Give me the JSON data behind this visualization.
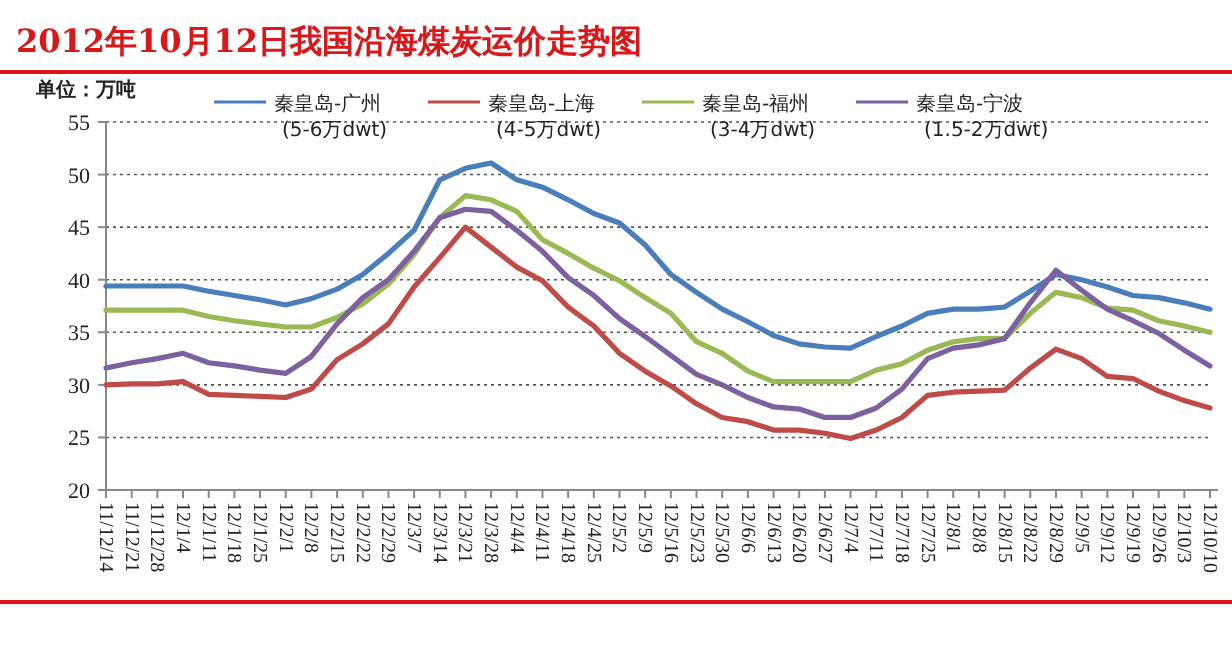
{
  "chart_data": {
    "type": "line",
    "title": "2012年10月12日我国沿海煤炭运价走势图",
    "ylabel": "单位：万吨",
    "legend": "top",
    "grid": "y",
    "categories": [
      "11/12/14",
      "11/12/21",
      "11/12/28",
      "12/1/4",
      "12/1/11",
      "12/1/18",
      "12/1/25",
      "12/2/1",
      "12/2/8",
      "12/2/15",
      "12/2/22",
      "12/2/29",
      "12/3/7",
      "12/3/14",
      "12/3/21",
      "12/3/28",
      "12/4/4",
      "12/4/11",
      "12/4/18",
      "12/4/25",
      "12/5/2",
      "12/5/9",
      "12/5/16",
      "12/5/23",
      "12/5/30",
      "12/6/6",
      "12/6/13",
      "12/6/20",
      "12/6/27",
      "12/7/4",
      "12/7/11",
      "12/7/18",
      "12/7/25",
      "12/8/1",
      "12/8/8",
      "12/8/15",
      "12/8/22",
      "12/8/29",
      "12/9/5",
      "12/9/12",
      "12/9/19",
      "12/9/26",
      "12/10/3",
      "12/10/10"
    ],
    "ylim": [
      20,
      55
    ],
    "yticks": [
      20,
      25,
      30,
      35,
      40,
      45,
      50,
      55
    ],
    "series": [
      {
        "name": "秦皇岛-广州\n(5-6万dwt)",
        "color": "#4a7ebb",
        "values": [
          39.4,
          39.4,
          39.4,
          39.4,
          38.9,
          38.5,
          38.1,
          37.6,
          38.2,
          39.1,
          40.5,
          42.5,
          44.7,
          49.5,
          50.6,
          51.1,
          49.5,
          48.8,
          47.6,
          46.3,
          45.4,
          43.3,
          40.5,
          38.8,
          37.2,
          36,
          34.7,
          33.9,
          33.6,
          33.5,
          34.6,
          35.6,
          36.8,
          37.2,
          37.2,
          37.4,
          38.9,
          40.5,
          40,
          39.3,
          38.5,
          38.3,
          37.8,
          37.2
        ]
      },
      {
        "name": "秦皇岛-上海\n(4-5万dwt)",
        "color": "#be4b48",
        "values": [
          30,
          30.1,
          30.1,
          30.3,
          29.1,
          29,
          28.9,
          28.8,
          29.6,
          32.4,
          33.9,
          35.8,
          39.3,
          42.1,
          45,
          43.1,
          41.2,
          39.9,
          37.4,
          35.6,
          33,
          31.3,
          29.9,
          28.2,
          26.9,
          26.5,
          25.7,
          25.7,
          25.4,
          24.9,
          25.7,
          26.9,
          29,
          29.3,
          29.4,
          29.5,
          31.6,
          33.4,
          32.5,
          30.8,
          30.6,
          29.4,
          28.5,
          27.8
        ]
      },
      {
        "name": "秦皇岛-福州\n(3-4万dwt)",
        "color": "#98b954",
        "values": [
          37.1,
          37.1,
          37.1,
          37.1,
          36.5,
          36.1,
          35.8,
          35.5,
          35.5,
          36.4,
          37.7,
          39.6,
          42.4,
          45.9,
          48,
          47.6,
          46.5,
          43.8,
          42.5,
          41.1,
          39.9,
          38.3,
          36.8,
          34.1,
          33,
          31.3,
          30.3,
          30.3,
          30.3,
          30.3,
          31.4,
          32,
          33.3,
          34.1,
          34.4,
          34.4,
          36.8,
          38.8,
          38.3,
          37.3,
          37.1,
          36.1,
          35.6,
          35
        ]
      },
      {
        "name": "秦皇岛-宁波\n(1.5-2万dwt)",
        "color": "#7d60a0",
        "values": [
          31.6,
          32.1,
          32.5,
          33,
          32.1,
          31.8,
          31.4,
          31.1,
          32.7,
          35.8,
          38.3,
          40,
          42.7,
          45.9,
          46.7,
          46.5,
          44.7,
          42.7,
          40.2,
          38.5,
          36.3,
          34.6,
          32.8,
          31,
          30,
          28.8,
          27.9,
          27.7,
          26.9,
          26.9,
          27.8,
          29.6,
          32.5,
          33.5,
          33.8,
          34.4,
          37.8,
          40.9,
          39,
          37.2,
          36.1,
          34.9,
          33.3,
          31.8
        ]
      }
    ]
  }
}
